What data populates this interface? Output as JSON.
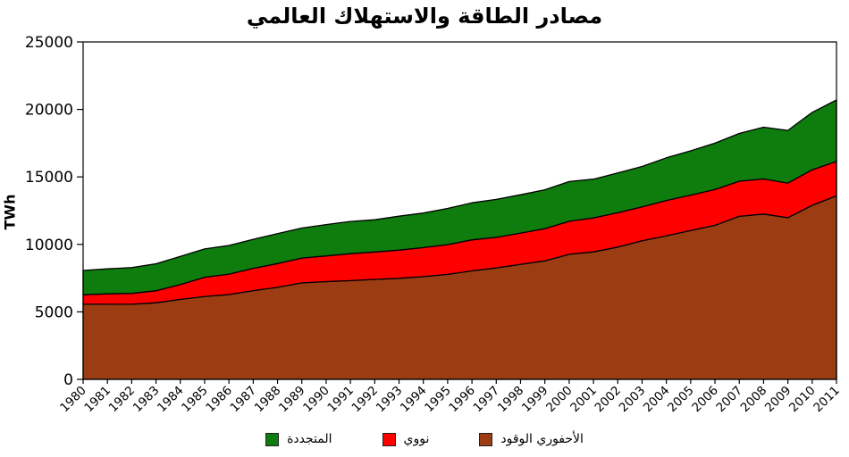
{
  "title": "مصادر الطاقة والاستهلاك العالمي",
  "chart_data": {
    "type": "area",
    "stacked": true,
    "title": "مصادر الطاقة والاستهلاك العالمي",
    "xlabel": "",
    "ylabel": "TWh",
    "ylim": [
      0,
      25000
    ],
    "yticks": [
      0,
      5000,
      10000,
      15000,
      20000,
      25000
    ],
    "grid": false,
    "legend_position": "bottom",
    "outline_color": "#000000",
    "x": [
      1980,
      1981,
      1982,
      1983,
      1984,
      1985,
      1986,
      1987,
      1988,
      1989,
      1990,
      1991,
      1992,
      1993,
      1994,
      1995,
      1996,
      1997,
      1998,
      1999,
      2000,
      2001,
      2002,
      2003,
      2004,
      2005,
      2006,
      2007,
      2008,
      2009,
      2010,
      2011
    ],
    "series": [
      {
        "key": "fossil",
        "name": "الأحفوري الوقود",
        "color": "#9C3C12",
        "values": [
          5584,
          5564,
          5565,
          5674,
          5925,
          6143,
          6281,
          6572,
          6816,
          7147,
          7239,
          7312,
          7409,
          7484,
          7615,
          7777,
          8043,
          8254,
          8527,
          8780,
          9265,
          9447,
          9801,
          10268,
          10641,
          11022,
          11413,
          12076,
          12250,
          11980,
          12900,
          13600
        ]
      },
      {
        "key": "nuclear",
        "name": "نووي",
        "color": "#FF0000",
        "values": [
          684,
          770,
          805,
          894,
          1105,
          1425,
          1515,
          1653,
          1760,
          1843,
          1909,
          2000,
          2027,
          2090,
          2149,
          2210,
          2292,
          2271,
          2313,
          2393,
          2450,
          2517,
          2545,
          2518,
          2615,
          2626,
          2660,
          2608,
          2601,
          2563,
          2630,
          2550
        ]
      },
      {
        "key": "renewables",
        "name": "المتجددة",
        "color": "#0E7D0E",
        "values": [
          1804,
          1854,
          1913,
          1995,
          2081,
          2095,
          2125,
          2150,
          2222,
          2219,
          2322,
          2389,
          2392,
          2516,
          2560,
          2680,
          2748,
          2808,
          2840,
          2874,
          2939,
          2869,
          2946,
          2987,
          3162,
          3280,
          3426,
          3536,
          3830,
          3900,
          4250,
          4550
        ]
      }
    ]
  },
  "legend": {
    "entries": [
      {
        "key": "renewables",
        "label": "المتجددة",
        "color": "#0E7D0E"
      },
      {
        "key": "nuclear",
        "label": "نووي",
        "color": "#FF0000"
      },
      {
        "key": "fossil",
        "label": "الأحفوري الوقود",
        "color": "#9C3C12"
      }
    ]
  }
}
